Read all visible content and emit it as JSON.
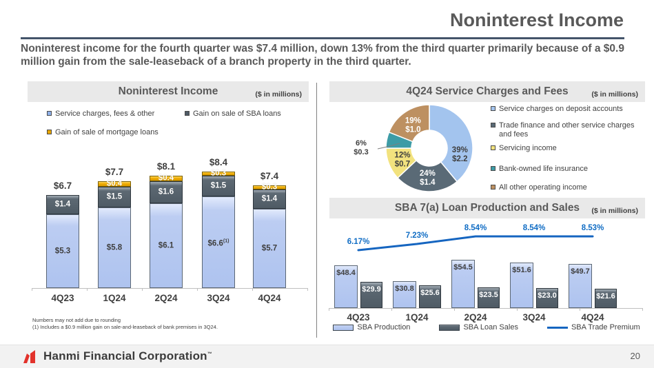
{
  "slide": {
    "title": "Noninterest Income",
    "intro": "Noninterest income for the fourth quarter was $7.4 million, down 13% from the third quarter primarily because of a $0.9 million gain from the sale-leaseback of a branch property in the third quarter.",
    "page_number": "20"
  },
  "footer": {
    "company": "Hanmi Financial Corporation",
    "trademark": "™"
  },
  "colors": {
    "bar_blue": "#aec3ef",
    "bar_slate": "#4f5b65",
    "bar_gold": "#f0ab00",
    "legend_blue": "#8fb1ea",
    "legend_slate": "#4f5b66",
    "legend_gold": "#e8a500",
    "pie_blue": "#a3c4ee",
    "pie_slate": "#5a6a76",
    "pie_yellow": "#f2e27e",
    "pie_teal": "#3d9ca6",
    "pie_brown": "#bd9061",
    "line_blue": "#1565c0",
    "pct_label": "#0f6cc4",
    "header_bg": "#e9e9e9",
    "title_gray": "#595959",
    "rule": "#44546a",
    "logo_red": "#e2322b"
  },
  "noninterest_chart": {
    "header": {
      "title": "Noninterest Income",
      "units": "($ in millions)"
    },
    "legend": [
      {
        "label": "Service charges, fees & other",
        "color_key": "blue"
      },
      {
        "label": "Gain on sale of SBA loans",
        "color_key": "slate"
      },
      {
        "label": "Gain of sale of mortgage loans",
        "color_key": "gold"
      }
    ],
    "chart_data": {
      "type": "bar",
      "stacked": true,
      "categories": [
        "4Q23",
        "1Q24",
        "2Q24",
        "3Q24",
        "4Q24"
      ],
      "series": [
        {
          "name": "Service charges, fees & other",
          "color_key": "blue",
          "values": [
            5.3,
            5.8,
            6.1,
            6.6,
            5.7
          ],
          "labels": [
            "$5.3",
            "$5.8",
            "$6.1",
            "$6.6",
            "$5.7"
          ]
        },
        {
          "name": "Gain on sale of SBA loans",
          "color_key": "slate",
          "values": [
            1.4,
            1.5,
            1.6,
            1.5,
            1.4
          ],
          "labels": [
            "$1.4",
            "$1.5",
            "$1.6",
            "$1.5",
            "$1.4"
          ]
        },
        {
          "name": "Gain of sale of mortgage loans",
          "color_key": "gold",
          "values": [
            0,
            0.4,
            0.4,
            0.3,
            0.3
          ],
          "labels": [
            "",
            "$0.4",
            "$0.4",
            "$0.3",
            "$0.3"
          ]
        }
      ],
      "totals": [
        6.7,
        7.7,
        8.1,
        8.4,
        7.4
      ],
      "total_labels": [
        "$6.7",
        "$7.7",
        "$8.1",
        "$8.4",
        "$7.4"
      ],
      "footnote_marker": {
        "series_index": 0,
        "category_index": 3,
        "marker": "(1)"
      },
      "ylabel": "",
      "ylim": [
        0,
        8.4
      ],
      "grid": false
    },
    "footnotes": [
      "Numbers may not add due to rounding",
      "(1)   Includes a $0.9 million gain on sale-and-leaseback of bank premises in 3Q24."
    ]
  },
  "service_charges_chart": {
    "header": {
      "title": "4Q24 Service Charges and Fees",
      "units": "($ in millions)"
    },
    "chart_data": {
      "type": "pie",
      "title": "4Q24 Service Charges and Fees",
      "slices": [
        {
          "label": "Service charges on deposit accounts",
          "pct": 39,
          "value": 2.2,
          "pct_label": "39%",
          "value_label": "$2.2",
          "color_key": "pie_blue",
          "text": "dark"
        },
        {
          "label": "Trade finance and other service charges and fees",
          "pct": 24,
          "value": 1.4,
          "pct_label": "24%",
          "value_label": "$1.4",
          "color_key": "pie_slate",
          "text": "white"
        },
        {
          "label": "Servicing income",
          "pct": 12,
          "value": 0.7,
          "pct_label": "12%",
          "value_label": "$0.7",
          "color_key": "pie_yellow",
          "text": "dark"
        },
        {
          "label": "Bank-owned life insurance",
          "pct": 6,
          "value": 0.3,
          "pct_label": "6%",
          "value_label": "$0.3",
          "color_key": "pie_teal",
          "text": "outside"
        },
        {
          "label": "All other operating income",
          "pct": 19,
          "value": 1.0,
          "pct_label": "19%",
          "value_label": "$1.0",
          "color_key": "pie_brown",
          "text": "white"
        }
      ],
      "legend_position": "right"
    }
  },
  "sba_chart": {
    "header": {
      "title": "SBA 7(a) Loan Production and Sales",
      "units": "($ in millions)"
    },
    "chart_data": {
      "type": "bar",
      "categories": [
        "4Q23",
        "1Q24",
        "2Q24",
        "3Q24",
        "4Q24"
      ],
      "series": [
        {
          "name": "SBA Production",
          "color_key": "blue",
          "values": [
            48.4,
            30.8,
            54.5,
            51.6,
            49.7
          ],
          "labels": [
            "$48.4",
            "$30.8",
            "$54.5",
            "$51.6",
            "$49.7"
          ]
        },
        {
          "name": "SBA Loan Sales",
          "color_key": "slate",
          "values": [
            29.9,
            25.6,
            23.5,
            23.0,
            21.6
          ],
          "labels": [
            "$29.9",
            "$25.6",
            "$23.5",
            "$23.0",
            "$21.6"
          ]
        }
      ],
      "line": {
        "name": "SBA Trade Premium",
        "values": [
          6.17,
          7.23,
          8.54,
          8.54,
          8.53
        ],
        "labels": [
          "6.17%",
          "7.23%",
          "8.54%",
          "8.54%",
          "8.53%"
        ]
      },
      "legend": [
        "SBA Production",
        "SBA Loan Sales",
        "SBA Trade Premium"
      ],
      "legend_position": "bottom",
      "grid": false
    }
  }
}
